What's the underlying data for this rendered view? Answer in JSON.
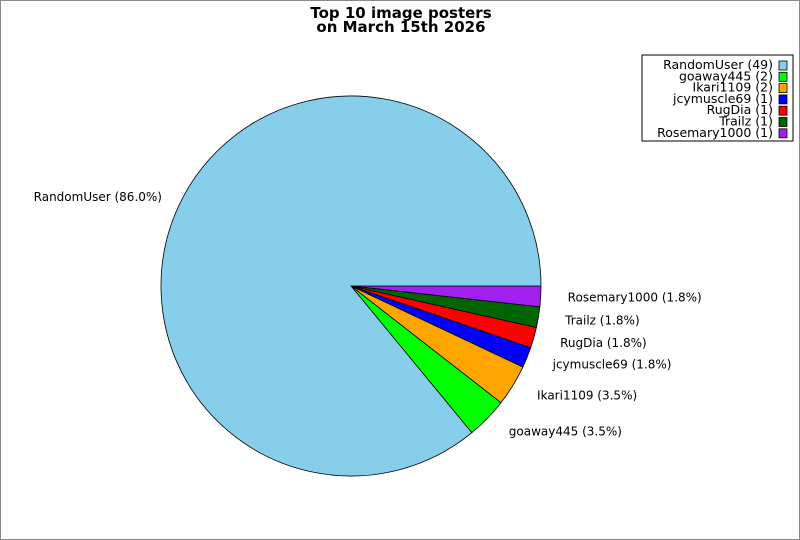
{
  "chart_data": {
    "type": "pie",
    "title_lines": [
      "Top 10 image posters",
      "on March 15th 2026"
    ],
    "slices": [
      {
        "name": "RandomUser",
        "count": 49,
        "percent_label": "RandomUser (86.0%)",
        "legend_label": "RandomUser (49)",
        "color": "#87ceeb"
      },
      {
        "name": "goaway445",
        "count": 2,
        "percent_label": "goaway445 (3.5%)",
        "legend_label": "goaway445 (2)",
        "color": "#00ff00"
      },
      {
        "name": "Ikari1109",
        "count": 2,
        "percent_label": "Ikari1109 (3.5%)",
        "legend_label": "Ikari1109 (2)",
        "color": "#ffa500"
      },
      {
        "name": "jcymuscle69",
        "count": 1,
        "percent_label": "jcymuscle69 (1.8%)",
        "legend_label": "jcymuscle69 (1)",
        "color": "#0000ff"
      },
      {
        "name": "RugDia",
        "count": 1,
        "percent_label": "RugDia (1.8%)",
        "legend_label": "RugDia (1)",
        "color": "#ff0000"
      },
      {
        "name": "Trailz",
        "count": 1,
        "percent_label": "Trailz (1.8%)",
        "legend_label": "Trailz (1)",
        "color": "#006400"
      },
      {
        "name": "Rosemary1000",
        "count": 1,
        "percent_label": "Rosemary1000 (1.8%)",
        "legend_label": "Rosemary1000 (1)",
        "color": "#a020f0"
      }
    ],
    "legend_position": "top-right"
  }
}
